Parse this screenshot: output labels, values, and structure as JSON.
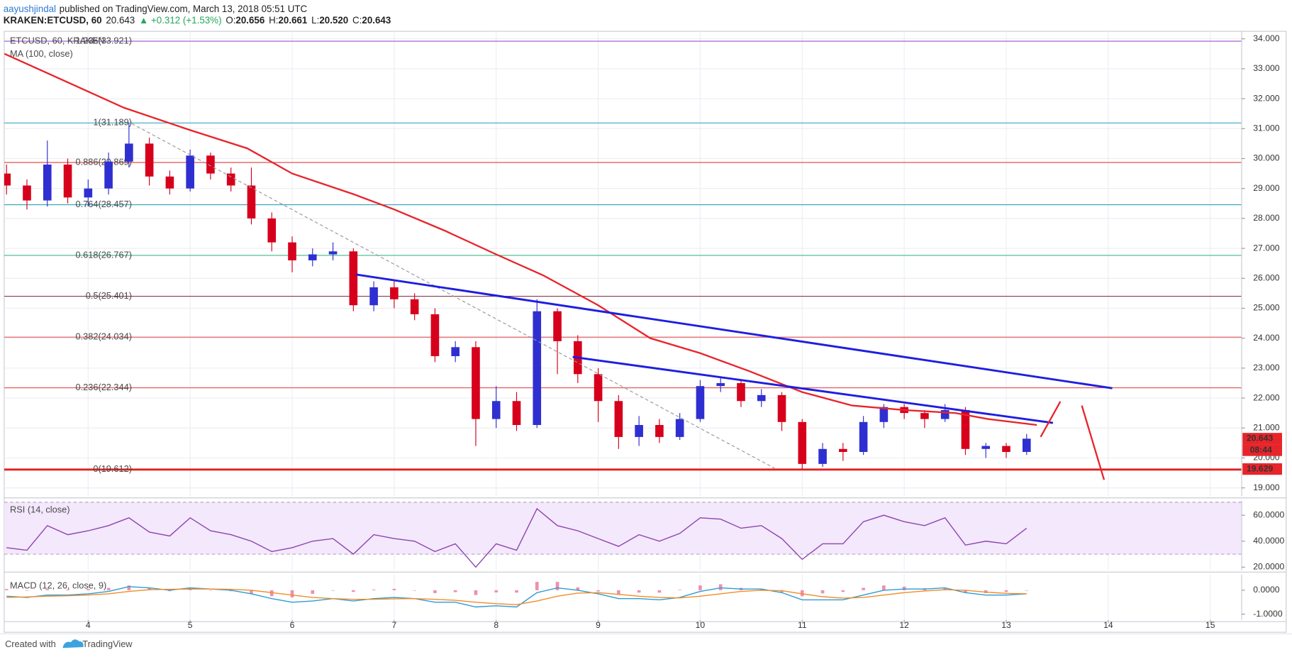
{
  "header": {
    "publisher": "aayushjindal",
    "published": "published on TradingView.com, March 13, 2018 05:51 UTC",
    "symbol": "KRAKEN:ETCUSD, 60",
    "last": "20.643",
    "change": "▲ +0.312 (+1.53%)",
    "ohlc": [
      {
        "label": "O:",
        "value": "20.656"
      },
      {
        "label": "H:",
        "value": "20.661"
      },
      {
        "label": "L:",
        "value": "20.520"
      },
      {
        "label": "C:",
        "value": "20.643"
      }
    ]
  },
  "chart_data": [
    {
      "type": "candlestick",
      "title": "ETCUSD, 60, KRAKEN",
      "x": [
        3.2,
        3.4,
        3.6,
        3.8,
        4.0,
        4.2,
        4.4,
        4.6,
        4.8,
        5.0,
        5.2,
        5.4,
        5.6,
        5.8,
        6.0,
        6.2,
        6.4,
        6.6,
        6.8,
        7.0,
        7.2,
        7.4,
        7.6,
        7.8,
        8.0,
        8.2,
        8.4,
        8.6,
        8.8,
        9.0,
        9.2,
        9.4,
        9.6,
        9.8,
        10.0,
        10.2,
        10.4,
        10.6,
        10.8,
        11.0,
        11.2,
        11.4,
        11.6,
        11.8,
        12.0,
        12.2,
        12.4,
        12.6,
        12.8,
        13.0,
        13.2
      ],
      "open": [
        29.5,
        29.1,
        28.6,
        29.8,
        28.7,
        29.0,
        29.9,
        30.5,
        29.4,
        29.0,
        30.1,
        29.5,
        29.1,
        28.0,
        27.2,
        26.6,
        26.8,
        26.9,
        25.1,
        25.7,
        25.3,
        24.8,
        23.4,
        23.7,
        21.3,
        21.9,
        21.1,
        24.9,
        23.9,
        22.8,
        21.9,
        20.7,
        21.1,
        20.7,
        21.3,
        22.4,
        22.5,
        21.9,
        22.1,
        21.2,
        19.8,
        20.3,
        20.2,
        21.2,
        21.7,
        21.5,
        21.3,
        21.6,
        20.3,
        20.4,
        20.2
      ],
      "high": [
        29.8,
        29.3,
        30.6,
        30.0,
        29.3,
        30.2,
        31.189,
        30.7,
        29.6,
        30.3,
        30.2,
        29.7,
        29.7,
        28.2,
        27.4,
        27.0,
        27.2,
        27.0,
        25.9,
        25.9,
        25.5,
        25.0,
        23.9,
        23.9,
        22.4,
        22.2,
        25.3,
        25.0,
        24.1,
        23.0,
        22.1,
        21.4,
        21.3,
        21.5,
        22.6,
        22.7,
        22.6,
        22.3,
        22.2,
        21.3,
        20.5,
        20.5,
        21.4,
        21.8,
        21.8,
        21.6,
        21.8,
        21.7,
        20.5,
        20.5,
        20.8
      ],
      "low": [
        28.8,
        28.3,
        28.4,
        28.5,
        28.4,
        28.8,
        29.7,
        29.1,
        28.8,
        28.9,
        29.3,
        28.9,
        27.8,
        26.9,
        26.2,
        26.4,
        26.6,
        24.9,
        24.9,
        25.0,
        24.6,
        23.2,
        23.2,
        20.4,
        21.0,
        20.9,
        21.0,
        22.8,
        22.5,
        21.2,
        20.3,
        20.4,
        20.5,
        20.6,
        21.2,
        22.2,
        21.7,
        21.7,
        20.9,
        19.63,
        19.7,
        19.9,
        20.1,
        21.0,
        21.3,
        21.0,
        21.2,
        20.1,
        20.0,
        20.0,
        20.1
      ],
      "close": [
        29.1,
        28.6,
        29.8,
        28.7,
        29.0,
        29.9,
        30.5,
        29.4,
        29.0,
        30.1,
        29.5,
        29.1,
        28.0,
        27.2,
        26.6,
        26.8,
        26.9,
        25.1,
        25.7,
        25.3,
        24.8,
        23.4,
        23.7,
        21.3,
        21.9,
        21.1,
        24.9,
        23.9,
        22.8,
        21.9,
        20.7,
        21.1,
        20.7,
        21.3,
        22.4,
        22.5,
        21.9,
        22.1,
        21.2,
        19.8,
        20.3,
        20.2,
        21.2,
        21.7,
        21.5,
        21.3,
        21.6,
        20.3,
        20.4,
        20.2,
        20.643
      ],
      "up_color": "#2f2fd1",
      "down_color": "#d6001c",
      "series": [
        {
          "name": "MA (100, close)",
          "color": "#e8242b",
          "x": [
            3.18,
            4.35,
            5.0,
            5.56,
            6.0,
            6.61,
            7.0,
            7.49,
            8.0,
            8.46,
            9.0,
            9.51,
            10.0,
            10.48,
            11.0,
            11.49,
            12.0,
            12.5,
            12.82,
            13.3
          ],
          "values": [
            33.5,
            31.7,
            30.95,
            30.34,
            29.5,
            28.8,
            28.3,
            27.6,
            26.8,
            26.1,
            25.1,
            24.0,
            23.5,
            22.9,
            22.2,
            21.75,
            21.6,
            21.5,
            21.3,
            21.1
          ]
        }
      ],
      "fib_levels": [
        {
          "label": "1.236(33.921)",
          "value": 33.921,
          "color": "#9c4fd0"
        },
        {
          "label": "1(31.189)",
          "value": 31.189,
          "color": "#3aa6c4"
        },
        {
          "label": "0.886(29.869)",
          "value": 29.869,
          "color": "#e05050"
        },
        {
          "label": "0.764(28.457)",
          "value": 28.457,
          "color": "#2fa2b8"
        },
        {
          "label": "0.618(26.767)",
          "value": 26.767,
          "color": "#3fb88a"
        },
        {
          "label": "0.5(25.401)",
          "value": 25.401,
          "color": "#8b3a4a"
        },
        {
          "label": "0.382(24.034)",
          "value": 24.034,
          "color": "#e05050"
        },
        {
          "label": "0.236(22.344)",
          "value": 22.344,
          "color": "#e05050"
        },
        {
          "label": "0(19.612)",
          "value": 19.612,
          "color": "#e0201f"
        }
      ],
      "price_tags": {
        "last": 20.643,
        "countdown": "08:44",
        "level": 19.629
      },
      "xlim": [
        3.177,
        15.308
      ],
      "xticks": [
        4,
        5,
        6,
        7,
        8,
        9,
        10,
        11,
        12,
        13,
        14,
        15
      ],
      "ylim": [
        18.72,
        34.25
      ],
      "yticks": [
        {
          "value": 19,
          "label": "19.000"
        },
        {
          "value": 20,
          "label": "20.000"
        },
        {
          "value": 21,
          "label": "21.000"
        },
        {
          "value": 22,
          "label": "22.000"
        },
        {
          "value": 23,
          "label": "23.000"
        },
        {
          "value": 24,
          "label": "24.000"
        },
        {
          "value": 25,
          "label": "25.000"
        },
        {
          "value": 26,
          "label": "26.000"
        },
        {
          "value": 27,
          "label": "27.000"
        },
        {
          "value": 28,
          "label": "28.000"
        },
        {
          "value": 29,
          "label": "29.000"
        },
        {
          "value": 30,
          "label": "30.000"
        },
        {
          "value": 31,
          "label": "31.000"
        },
        {
          "value": 32,
          "label": "32.000"
        },
        {
          "value": 33,
          "label": "33.000"
        },
        {
          "value": 34,
          "label": "34.000"
        }
      ],
      "grid": true
    },
    {
      "type": "line",
      "x": [
        3.2,
        3.4,
        3.6,
        3.8,
        4.0,
        4.2,
        4.4,
        4.6,
        4.8,
        5.0,
        5.2,
        5.4,
        5.6,
        5.8,
        6.0,
        6.2,
        6.4,
        6.6,
        6.8,
        7.0,
        7.2,
        7.4,
        7.6,
        7.8,
        8.0,
        8.2,
        8.4,
        8.6,
        8.8,
        9.0,
        9.2,
        9.4,
        9.6,
        9.8,
        10.0,
        10.2,
        10.4,
        10.6,
        10.8,
        11.0,
        11.2,
        11.4,
        11.6,
        11.8,
        12.0,
        12.2,
        12.4,
        12.6,
        12.8,
        13.0,
        13.2
      ],
      "series": [
        {
          "name": "RSI (14, close)",
          "color": "#8e44ad",
          "values": [
            35,
            33,
            52,
            45,
            48,
            52,
            58,
            47,
            44,
            58,
            48,
            45,
            40,
            32,
            35,
            40,
            42,
            30,
            45,
            42,
            40,
            32,
            38,
            20,
            38,
            33,
            65,
            52,
            48,
            42,
            36,
            45,
            40,
            46,
            58,
            57,
            50,
            52,
            42,
            26,
            38,
            38,
            55,
            60,
            55,
            52,
            58,
            37,
            40,
            38,
            50
          ]
        }
      ],
      "band": [
        30,
        70
      ],
      "xlim": [
        3.177,
        15.308
      ],
      "ylim": [
        17.46,
        71.43
      ],
      "yticks": [
        {
          "value": 20,
          "label": "20.0000"
        },
        {
          "value": 40,
          "label": "40.0000"
        },
        {
          "value": 60,
          "label": "60.0000"
        }
      ]
    },
    {
      "type": "macd",
      "x": [
        3.2,
        3.4,
        3.6,
        3.8,
        4.0,
        4.2,
        4.4,
        4.6,
        4.8,
        5.0,
        5.2,
        5.4,
        5.6,
        5.8,
        6.0,
        6.2,
        6.4,
        6.6,
        6.8,
        7.0,
        7.2,
        7.4,
        7.6,
        7.8,
        8.0,
        8.2,
        8.4,
        8.6,
        8.8,
        9.0,
        9.2,
        9.4,
        9.6,
        9.8,
        10.0,
        10.2,
        10.4,
        10.6,
        10.8,
        11.0,
        11.2,
        11.4,
        11.6,
        11.8,
        12.0,
        12.2,
        12.4,
        12.6,
        12.8,
        13.0,
        13.2
      ],
      "series": [
        {
          "name": "MACD (12, 26, close, 9)",
          "color": "#2e9bd6",
          "values": [
            -0.25,
            -0.3,
            -0.2,
            -0.2,
            -0.15,
            -0.05,
            0.15,
            0.1,
            0.0,
            0.1,
            0.05,
            0.0,
            -0.15,
            -0.35,
            -0.5,
            -0.45,
            -0.35,
            -0.45,
            -0.35,
            -0.3,
            -0.35,
            -0.5,
            -0.5,
            -0.7,
            -0.65,
            -0.7,
            -0.1,
            0.1,
            0.0,
            -0.15,
            -0.35,
            -0.35,
            -0.4,
            -0.3,
            -0.05,
            0.1,
            0.05,
            0.05,
            -0.1,
            -0.4,
            -0.4,
            -0.4,
            -0.2,
            0.0,
            0.05,
            0.05,
            0.1,
            -0.1,
            -0.2,
            -0.2,
            -0.15
          ]
        },
        {
          "color": "#f28c28",
          "values": [
            -0.3,
            -0.28,
            -0.25,
            -0.23,
            -0.2,
            -0.15,
            -0.05,
            0.02,
            0.04,
            0.05,
            0.05,
            0.04,
            0.0,
            -0.1,
            -0.2,
            -0.3,
            -0.35,
            -0.38,
            -0.38,
            -0.36,
            -0.35,
            -0.38,
            -0.42,
            -0.5,
            -0.56,
            -0.6,
            -0.45,
            -0.25,
            -0.12,
            -0.1,
            -0.17,
            -0.25,
            -0.3,
            -0.32,
            -0.25,
            -0.15,
            -0.05,
            0.0,
            -0.02,
            -0.15,
            -0.27,
            -0.33,
            -0.3,
            -0.2,
            -0.1,
            -0.03,
            0.02,
            0.0,
            -0.08,
            -0.13,
            -0.15
          ]
        }
      ],
      "histogram": {
        "color": "#f08fae",
        "values": [
          0.05,
          -0.02,
          0.05,
          0.03,
          0.05,
          0.1,
          0.2,
          0.08,
          -0.04,
          0.05,
          0.0,
          -0.04,
          -0.15,
          -0.25,
          -0.3,
          -0.15,
          0.0,
          -0.07,
          0.03,
          0.06,
          0.0,
          -0.12,
          -0.08,
          -0.2,
          -0.09,
          -0.1,
          0.35,
          0.35,
          0.12,
          -0.05,
          -0.18,
          -0.1,
          -0.1,
          0.02,
          0.2,
          0.25,
          0.1,
          0.05,
          -0.08,
          -0.25,
          -0.13,
          -0.07,
          0.1,
          0.2,
          0.15,
          0.08,
          0.08,
          -0.1,
          -0.12,
          -0.07,
          0.0
        ]
      },
      "xlim": [
        3.177,
        15.308
      ],
      "ylim": [
        -1.24,
        0.655
      ],
      "yticks": [
        {
          "value": -1,
          "label": "-1.0000"
        },
        {
          "value": 0,
          "label": "0.0000"
        }
      ]
    }
  ],
  "footer": {
    "created": "Created with",
    "brand": "TradingView"
  }
}
